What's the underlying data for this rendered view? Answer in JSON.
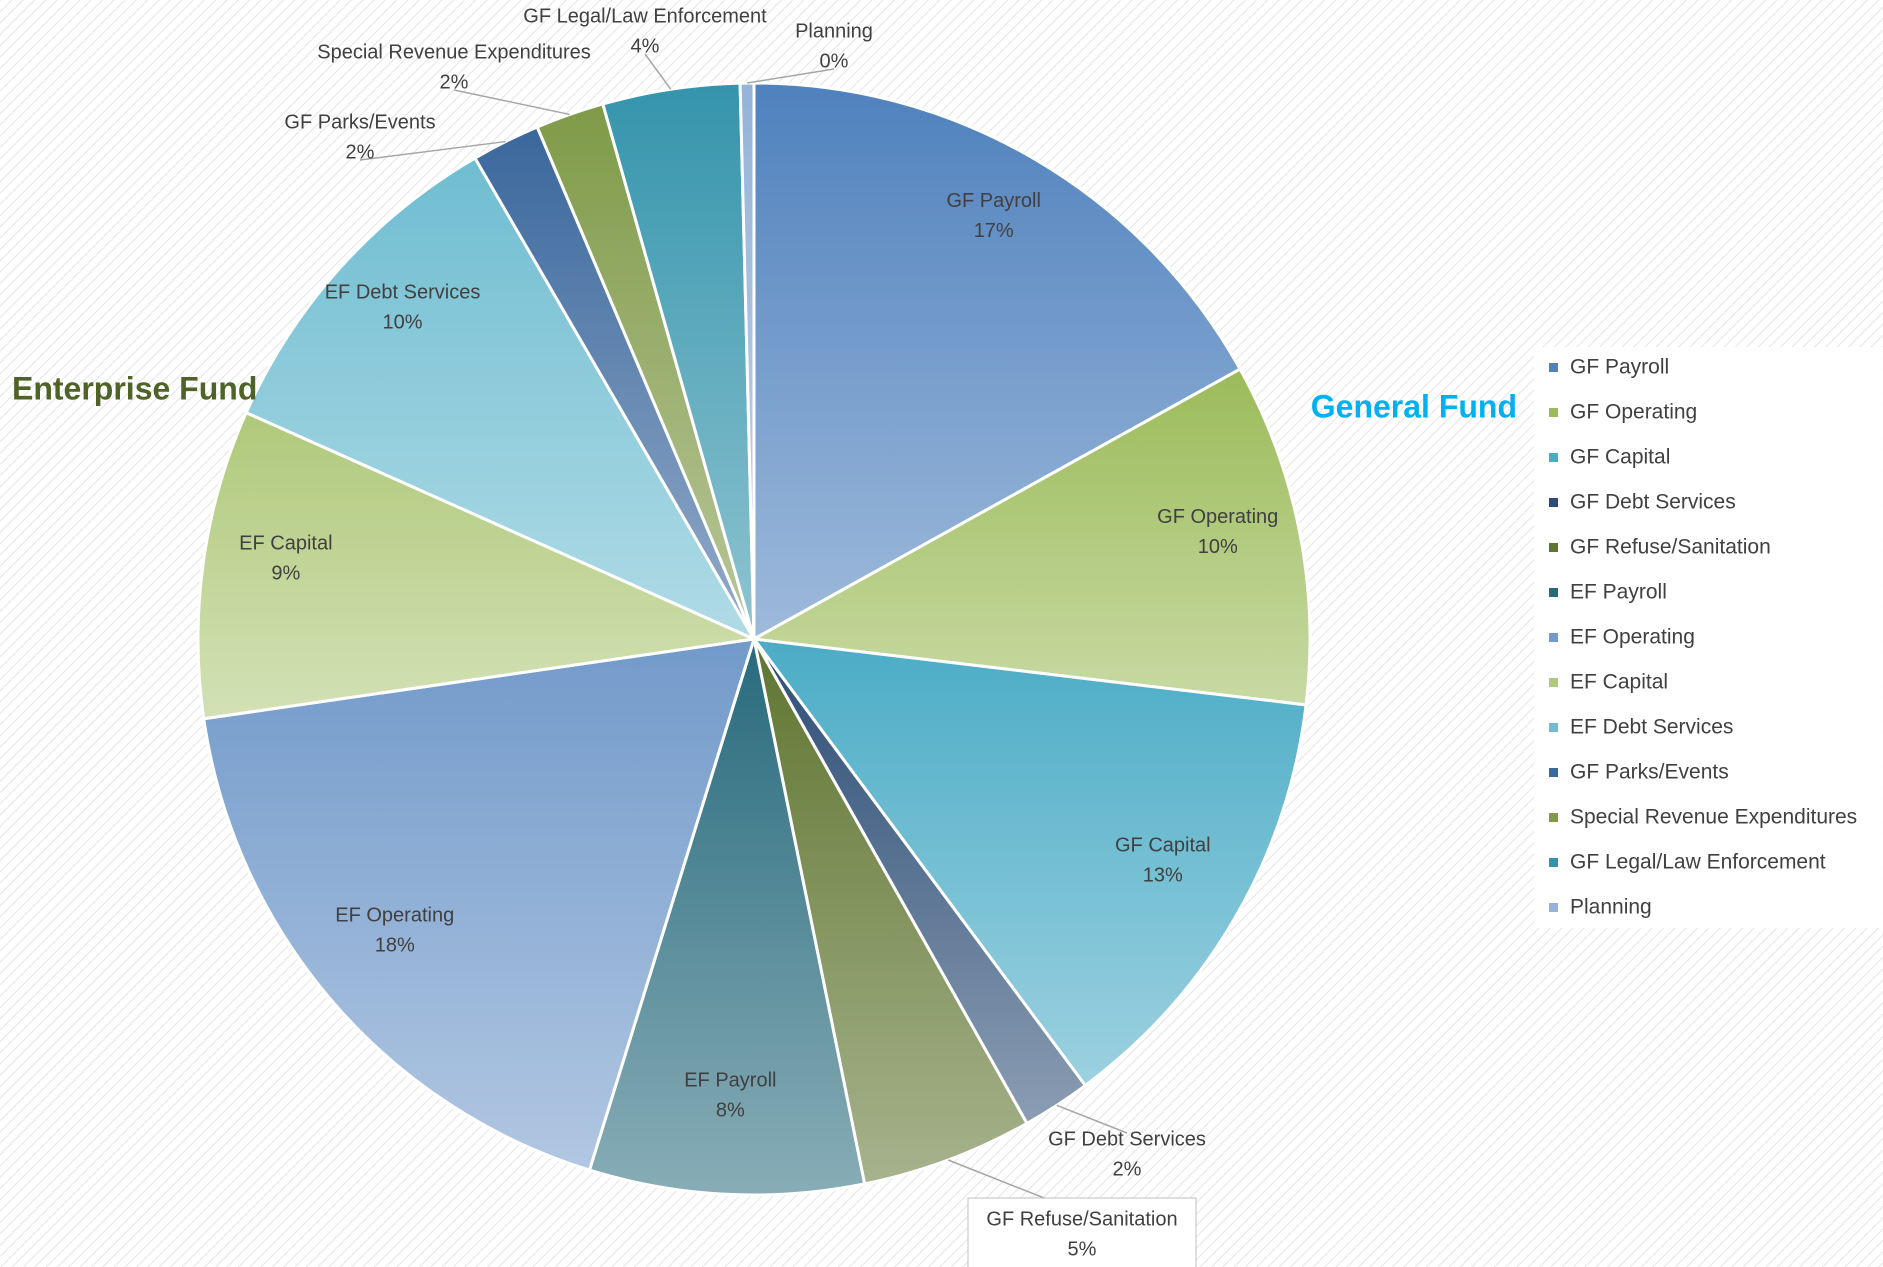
{
  "chart_data": {
    "type": "pie",
    "categories": [
      "GF Payroll",
      "GF Operating",
      "GF Capital",
      "GF Debt Services",
      "GF Refuse/Sanitation",
      "EF Payroll",
      "EF Operating",
      "EF Capital",
      "EF Debt Services",
      "GF Parks/Events",
      "Special Revenue Expenditures",
      "GF Legal/Law Enforcement",
      "Planning"
    ],
    "values": [
      17,
      10,
      13,
      2,
      5,
      8,
      18,
      9,
      10,
      2,
      2,
      4,
      0.4
    ],
    "value_labels": [
      "17%",
      "10%",
      "13%",
      "2%",
      "5%",
      "8%",
      "18%",
      "9%",
      "10%",
      "2%",
      "2%",
      "4%",
      "0%"
    ],
    "colors": [
      "#4f81bd",
      "#9bbb59",
      "#4bacc6",
      "#2c4d75",
      "#5f7530",
      "#276a7c",
      "#729aca",
      "#afc97a",
      "#6fbdd1",
      "#3a679c",
      "#7f9a48",
      "#3494ac",
      "#95b3d7"
    ],
    "annotations": [
      {
        "text": "Enterprise Fund",
        "color": "#4f6228"
      },
      {
        "text": "General Fund",
        "color": "#00b0f0"
      }
    ],
    "legend": "right"
  }
}
